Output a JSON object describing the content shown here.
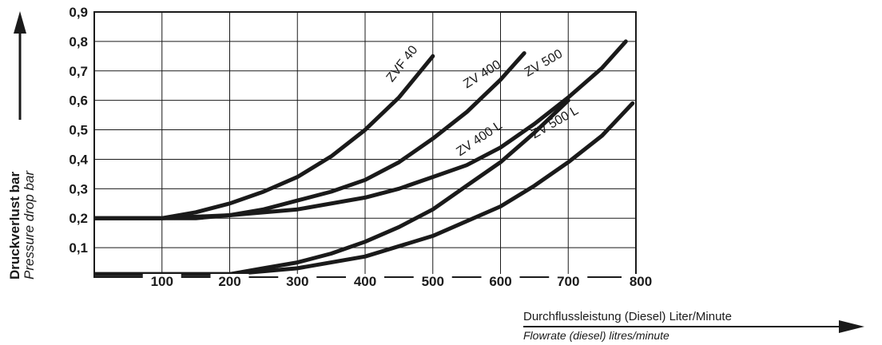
{
  "chart_data": {
    "type": "line",
    "xlabel": "Durchflussleistung (Diesel) Liter/Minute",
    "xlabel_en": "Flowrate (diesel) litres/minute",
    "ylabel": "Druckverlust  bar",
    "ylabel_en": "Pressure drop  bar",
    "xlim": [
      0,
      800
    ],
    "ylim": [
      0,
      0.9
    ],
    "x_ticks": [
      "100",
      "200",
      "300",
      "400",
      "500",
      "600",
      "700",
      "800"
    ],
    "y_ticks": [
      "0,1",
      "0,2",
      "0,3",
      "0,4",
      "0,5",
      "0,6",
      "0,7",
      "0,8",
      "0,9"
    ],
    "grid": true,
    "series": [
      {
        "name": "ZVF 40",
        "x": [
          0,
          100,
          150,
          200,
          250,
          300,
          350,
          400,
          450,
          500
        ],
        "y": [
          0.2,
          0.2,
          0.22,
          0.25,
          0.29,
          0.34,
          0.41,
          0.5,
          0.61,
          0.75
        ]
      },
      {
        "name": "ZV 400",
        "x": [
          0,
          100,
          150,
          200,
          250,
          300,
          350,
          400,
          450,
          500,
          550,
          600,
          635
        ],
        "y": [
          0.2,
          0.2,
          0.2,
          0.21,
          0.23,
          0.26,
          0.29,
          0.33,
          0.39,
          0.47,
          0.56,
          0.67,
          0.76
        ]
      },
      {
        "name": "ZV 500",
        "x": [
          0,
          100,
          200,
          300,
          400,
          450,
          500,
          550,
          600,
          650,
          700,
          750,
          785
        ],
        "y": [
          0.2,
          0.2,
          0.21,
          0.23,
          0.27,
          0.3,
          0.34,
          0.38,
          0.44,
          0.52,
          0.61,
          0.71,
          0.8
        ]
      },
      {
        "name": "ZV 400 L",
        "x": [
          0,
          100,
          200,
          250,
          300,
          350,
          400,
          450,
          500,
          550,
          600,
          650,
          700
        ],
        "y": [
          0.01,
          0.01,
          0.01,
          0.03,
          0.05,
          0.08,
          0.12,
          0.17,
          0.23,
          0.31,
          0.39,
          0.49,
          0.6
        ]
      },
      {
        "name": "ZV 500 L",
        "x": [
          0,
          100,
          200,
          250,
          300,
          400,
          500,
          600,
          650,
          700,
          750,
          795
        ],
        "y": [
          0.01,
          0.01,
          0.01,
          0.02,
          0.03,
          0.07,
          0.14,
          0.24,
          0.31,
          0.39,
          0.48,
          0.59
        ]
      }
    ]
  }
}
